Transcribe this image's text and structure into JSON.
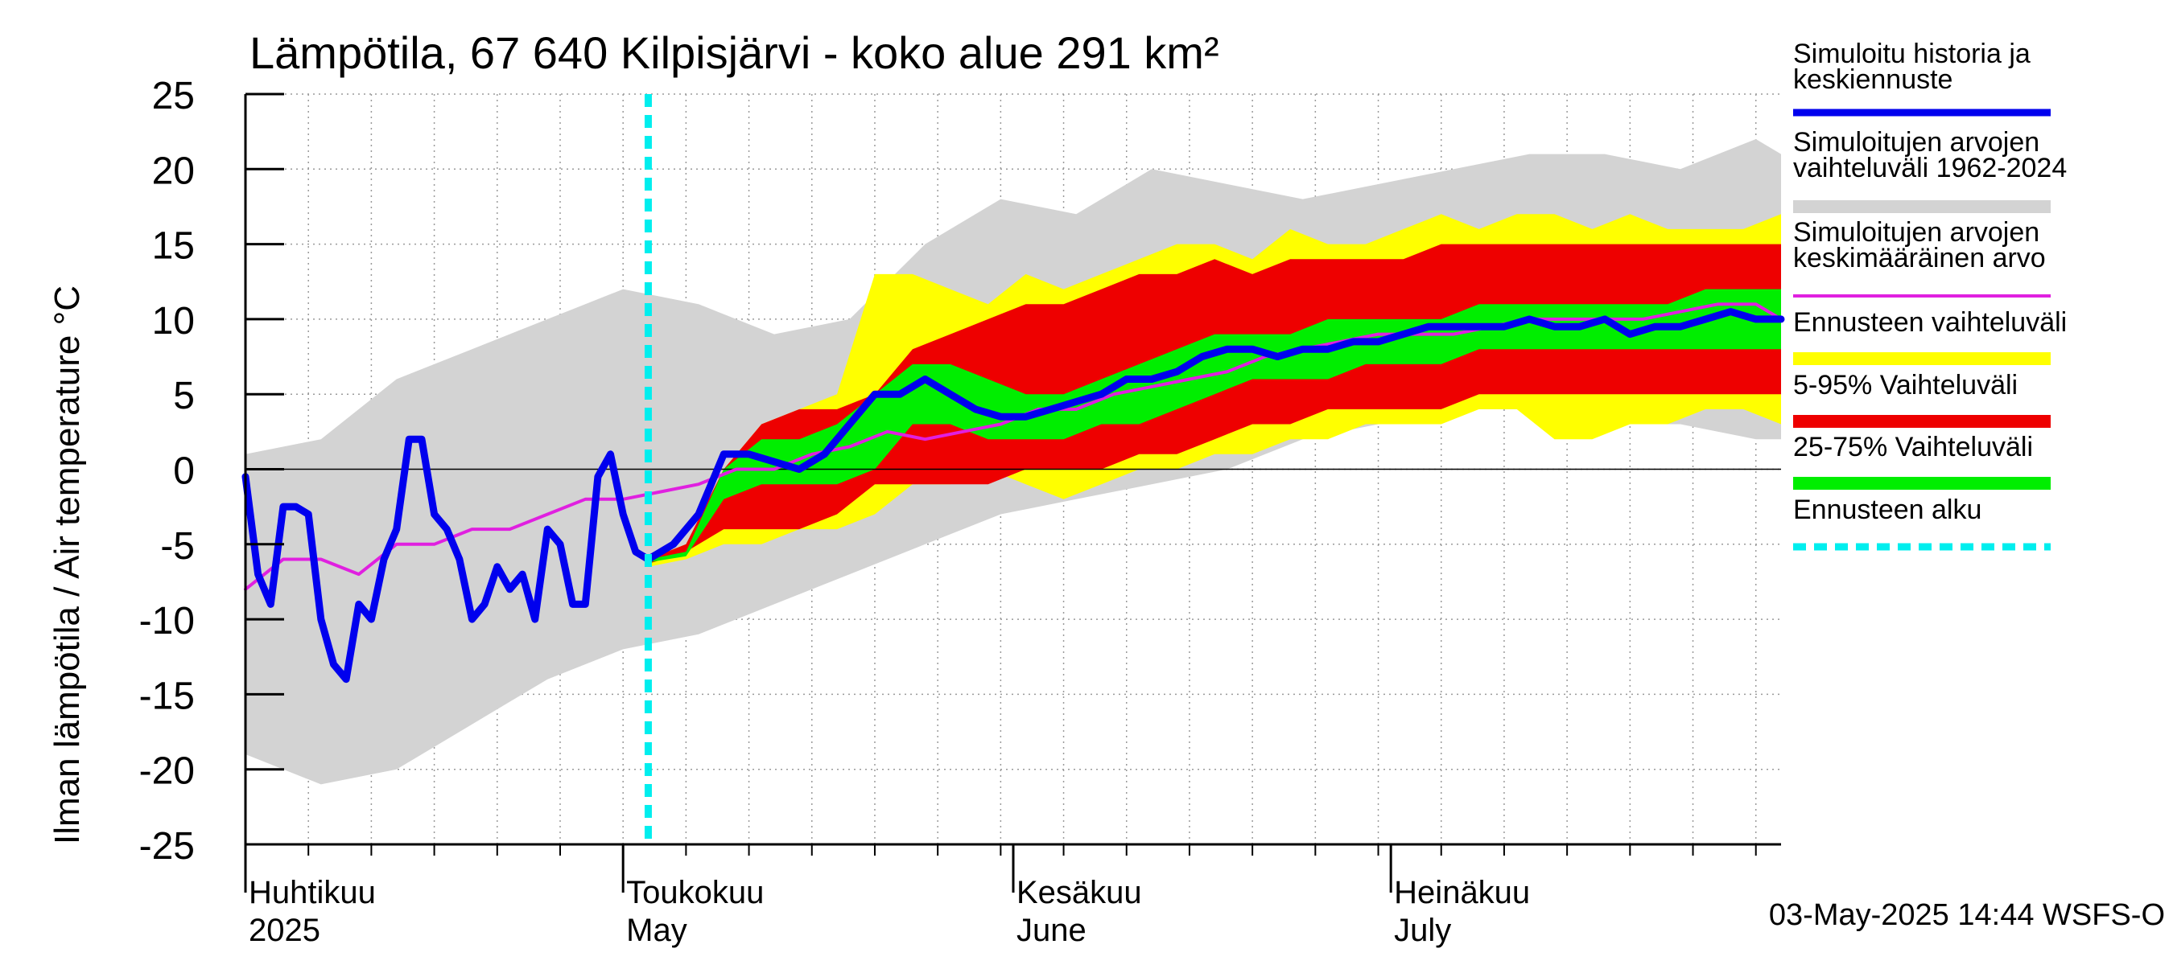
{
  "chart_data": {
    "type": "area",
    "title": "Lämpötila, 67 640 Kilpisjärvi - koko alue 291 km²",
    "ylabel": "Ilman lämpötila / Air temperature   °C",
    "xlabel": "",
    "ylim": [
      -25,
      25
    ],
    "yticks": [
      25,
      20,
      15,
      10,
      5,
      0,
      -5,
      -10,
      -15,
      -20,
      -25
    ],
    "x_unit": "day index from 1 April 2025",
    "xlim": [
      0,
      122
    ],
    "forecast_start_day": 32,
    "month_labels": [
      {
        "fi": "Huhtikuu",
        "en": "2025",
        "day": 0
      },
      {
        "fi": "Toukokuu",
        "en": "May",
        "day": 30
      },
      {
        "fi": "Kesäkuu",
        "en": "June",
        "day": 61
      },
      {
        "fi": "Heinäkuu",
        "en": "July",
        "day": 91
      }
    ],
    "timestamp": "03-May-2025 14:44 WSFS-O",
    "legend": [
      {
        "label": "Simuloitu historia ja keskiennuste",
        "color": "#0000ee"
      },
      {
        "label": "Simuloitujen arvojen vaihteluväli 1962-2024",
        "color": "#d3d3d3"
      },
      {
        "label": "Simuloitujen arvojen keskimääräinen arvo",
        "color": "#e020e0"
      },
      {
        "label": "Ennusteen vaihteluväli",
        "color": "#ffff00"
      },
      {
        "label": "5-95% Vaihteluväli",
        "color": "#ee0000"
      },
      {
        "label": "25-75% Vaihteluväli",
        "color": "#00ee00"
      },
      {
        "label": "Ennusteen alku",
        "color": "#00eeee"
      }
    ],
    "series": {
      "history_range": {
        "x": [
          0,
          6,
          12,
          18,
          24,
          30,
          36,
          42,
          48,
          54,
          60,
          66,
          72,
          78,
          84,
          90,
          96,
          102,
          108,
          114,
          120,
          122
        ],
        "upper": [
          1,
          2,
          6,
          8,
          10,
          12,
          11,
          9,
          10,
          15,
          18,
          17,
          20,
          19,
          18,
          19,
          20,
          21,
          21,
          20,
          22,
          21
        ],
        "lower": [
          -19,
          -21,
          -20,
          -17,
          -14,
          -12,
          -11,
          -9,
          -7,
          -5,
          -3,
          -2,
          -1,
          0,
          2,
          3,
          4,
          4,
          3,
          3,
          2,
          2
        ]
      },
      "forecast_range": {
        "x": [
          32,
          35,
          38,
          41,
          44,
          47,
          50,
          53,
          56,
          59,
          62,
          65,
          68,
          71,
          74,
          77,
          80,
          83,
          86,
          89,
          92,
          95,
          98,
          101,
          104,
          107,
          110,
          113,
          116,
          119,
          122
        ],
        "upper": [
          -6,
          -5,
          0,
          3,
          4,
          5,
          13,
          13,
          12,
          11,
          13,
          12,
          13,
          14,
          15,
          15,
          14,
          16,
          15,
          15,
          16,
          17,
          16,
          17,
          17,
          16,
          17,
          16,
          16,
          16,
          17
        ],
        "lower": [
          -6.5,
          -6,
          -5,
          -5,
          -4,
          -4,
          -3,
          -1,
          -1,
          0,
          -1,
          -2,
          -1,
          0,
          0,
          1,
          1,
          2,
          2,
          3,
          3,
          3,
          4,
          4,
          2,
          2,
          3,
          3,
          4,
          4,
          3
        ]
      },
      "p5_95": {
        "x": [
          32,
          35,
          38,
          41,
          44,
          47,
          50,
          53,
          56,
          59,
          62,
          65,
          68,
          71,
          74,
          77,
          80,
          83,
          86,
          89,
          92,
          95,
          98,
          101,
          104,
          107,
          110,
          113,
          116,
          119,
          122
        ],
        "upper": [
          -6,
          -5,
          0,
          3,
          4,
          4,
          5,
          8,
          9,
          10,
          11,
          11,
          12,
          13,
          13,
          14,
          13,
          14,
          14,
          14,
          14,
          15,
          15,
          15,
          15,
          15,
          15,
          15,
          15,
          15,
          15
        ],
        "lower": [
          -6.3,
          -5.5,
          -4,
          -4,
          -4,
          -3,
          -1,
          -1,
          -1,
          -1,
          0,
          0,
          0,
          1,
          1,
          2,
          3,
          3,
          4,
          4,
          4,
          4,
          5,
          5,
          5,
          5,
          5,
          5,
          5,
          5,
          5
        ]
      },
      "p25_75": {
        "x": [
          32,
          35,
          38,
          41,
          44,
          47,
          50,
          53,
          56,
          59,
          62,
          65,
          68,
          71,
          74,
          77,
          80,
          83,
          86,
          89,
          92,
          95,
          98,
          101,
          104,
          107,
          110,
          113,
          116,
          119,
          122
        ],
        "upper": [
          -6,
          -5.5,
          0,
          2,
          2,
          3,
          5,
          7,
          7,
          6,
          5,
          5,
          6,
          7,
          8,
          9,
          9,
          9,
          10,
          10,
          10,
          10,
          11,
          11,
          11,
          11,
          11,
          11,
          12,
          12,
          12
        ],
        "lower": [
          -6.2,
          -5.8,
          -2,
          -1,
          -1,
          -1,
          0,
          3,
          3,
          2,
          2,
          2,
          3,
          3,
          4,
          5,
          6,
          6,
          6,
          7,
          7,
          7,
          8,
          8,
          8,
          8,
          8,
          8,
          8,
          8,
          8
        ]
      },
      "mean": {
        "x": [
          0,
          3,
          6,
          9,
          12,
          15,
          18,
          21,
          24,
          27,
          30,
          33,
          36,
          39,
          42,
          45,
          48,
          51,
          54,
          57,
          60,
          63,
          66,
          69,
          72,
          75,
          78,
          81,
          84,
          87,
          90,
          93,
          96,
          99,
          102,
          105,
          108,
          111,
          114,
          117,
          120,
          122
        ],
        "y": [
          -8,
          -6,
          -6,
          -7,
          -5,
          -5,
          -4,
          -4,
          -3,
          -2,
          -2,
          -1.5,
          -1,
          0,
          0,
          1,
          1.5,
          2.5,
          2,
          2.5,
          3,
          4,
          4,
          5,
          5.5,
          6,
          6.5,
          7.5,
          8,
          8.5,
          9,
          9,
          9,
          9.5,
          10,
          10,
          10,
          10,
          10.5,
          11,
          11,
          10
        ]
      },
      "simulated": {
        "x": [
          0,
          1,
          2,
          3,
          4,
          5,
          6,
          7,
          8,
          9,
          10,
          11,
          12,
          13,
          14,
          15,
          16,
          17,
          18,
          19,
          20,
          21,
          22,
          23,
          24,
          25,
          26,
          27,
          28,
          29,
          30,
          31,
          32,
          34,
          36,
          38,
          40,
          42,
          44,
          46,
          48,
          50,
          52,
          54,
          56,
          58,
          60,
          62,
          64,
          66,
          68,
          70,
          72,
          74,
          76,
          78,
          80,
          82,
          84,
          86,
          88,
          90,
          92,
          94,
          96,
          98,
          100,
          102,
          104,
          106,
          108,
          110,
          112,
          114,
          116,
          118,
          120,
          122
        ],
        "y": [
          -0.5,
          -7,
          -9,
          -2.5,
          -2.5,
          -3,
          -10,
          -13,
          -14,
          -9,
          -10,
          -6,
          -4,
          2,
          2,
          -3,
          -4,
          -6,
          -10,
          -9,
          -6.5,
          -8,
          -7,
          -10,
          -4,
          -5,
          -9,
          -9,
          -0.5,
          1,
          -3,
          -5.5,
          -6,
          -5,
          -3,
          1,
          1,
          0.5,
          0,
          1,
          3,
          5,
          5,
          6,
          5,
          4,
          3.5,
          3.5,
          4,
          4.5,
          5,
          6,
          6,
          6.5,
          7.5,
          8,
          8,
          7.5,
          8,
          8,
          8.5,
          8.5,
          9,
          9.5,
          9.5,
          9.5,
          9.5,
          10,
          9.5,
          9.5,
          10,
          9,
          9.5,
          9.5,
          10,
          10.5,
          10,
          10
        ]
      }
    }
  }
}
